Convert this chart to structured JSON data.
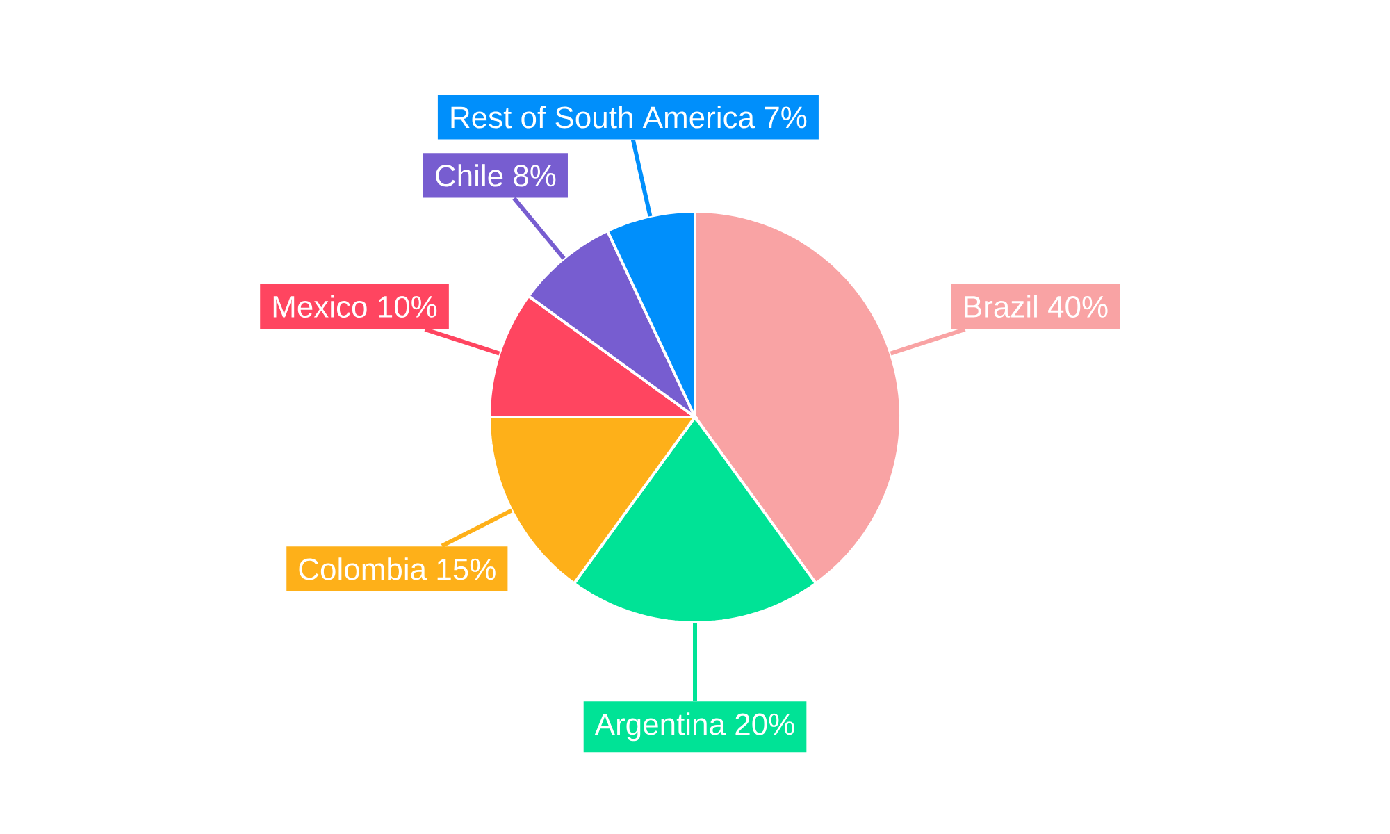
{
  "chart_data": {
    "type": "pie",
    "categories": [
      "Brazil",
      "Argentina",
      "Colombia",
      "Mexico",
      "Chile",
      "Rest of South America"
    ],
    "values": [
      40,
      20,
      15,
      10,
      8,
      7
    ],
    "value_labels": [
      "40%",
      "20%",
      "15%",
      "10%",
      "8%",
      "7%"
    ],
    "colors": [
      "#f9a3a4",
      "#00e396",
      "#feb019",
      "#ff4560",
      "#775dd0",
      "#008ffb"
    ],
    "legend": false
  }
}
